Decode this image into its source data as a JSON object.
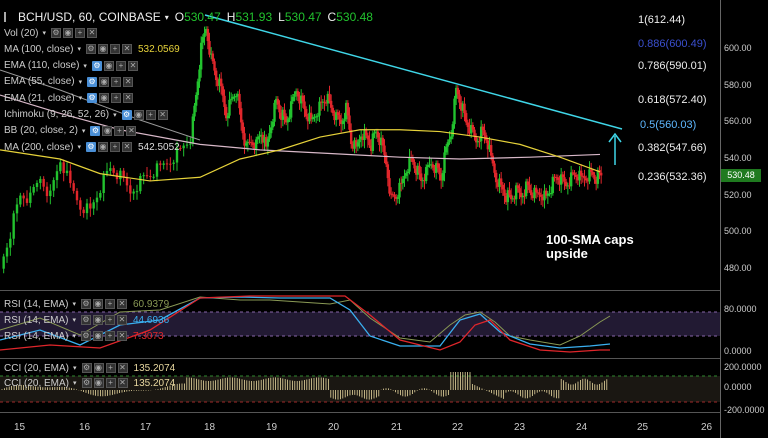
{
  "header": {
    "symbol": "BCH/USD, 60, COINBASE",
    "o_label": "O",
    "o_value": "530.47",
    "h_label": "H",
    "h_value": "531.93",
    "l_label": "L",
    "l_value": "530.47",
    "c_label": "C",
    "c_value": "530.48"
  },
  "indicators": [
    {
      "name": "Vol (20)",
      "value": ""
    },
    {
      "name": "MA (100, close)",
      "value": "532.0569"
    },
    {
      "name": "EMA (110, close)",
      "value": ""
    },
    {
      "name": "EMA (55, close)",
      "value": ""
    },
    {
      "name": "EMA (21, close)",
      "value": ""
    },
    {
      "name": "Ichimoku (9, 26, 52, 26)",
      "value": ""
    },
    {
      "name": "BB (20, close, 2)",
      "value": ""
    },
    {
      "name": "MA (200, close)",
      "value": "542.5052"
    }
  ],
  "rsi_legend": [
    {
      "name": "RSI (14, EMA)",
      "value": "60.9379"
    },
    {
      "name": "RSI (14, EMA)",
      "value": "44.6936"
    },
    {
      "name": "RSI (14, EMA)",
      "value": "7.3073"
    }
  ],
  "cci_legend": [
    {
      "name": "CCI (20, EMA)",
      "value": "135.2074"
    },
    {
      "name": "CCI (20, EMA)",
      "value": "135.2074"
    }
  ],
  "price_axis": [
    "600.00",
    "580.00",
    "560.00",
    "540.00",
    "520.00",
    "500.00",
    "480.00"
  ],
  "price_tag": "530.48",
  "rsi_axis": [
    "80.0000",
    "0.0000"
  ],
  "cci_axis": [
    "200.0000",
    "0.0000",
    "-200.0000"
  ],
  "x_labels": [
    "15",
    "16",
    "17",
    "18",
    "19",
    "20",
    "21",
    "22",
    "23",
    "24",
    "25",
    "26"
  ],
  "fib_levels": [
    {
      "label": "1(612.44)",
      "color": "#eeeeee"
    },
    {
      "label": "0.886(600.49)",
      "color": "#3a4fd0"
    },
    {
      "label": "0.786(590.01)",
      "color": "#eeeeee"
    },
    {
      "label": "0.618(572.40)",
      "color": "#eeeeee"
    },
    {
      "label": "0.5(560.03)",
      "color": "#5fb8ff"
    },
    {
      "label": "0.382(547.66)",
      "color": "#eeeeee"
    },
    {
      "label": "0.236(532.36)",
      "color": "#eeeeee"
    }
  ],
  "annotation": "100-SMA caps\nupside",
  "colors": {
    "up": "#22c22e",
    "down": "#e0262b",
    "trend": "#3fd6e8",
    "sma100": "#e6d23a",
    "sma200": "#d8b8c8",
    "rsi1": "#8a9a55",
    "rsi2": "#3ab0f0",
    "rsi3": "#e0262b"
  }
}
